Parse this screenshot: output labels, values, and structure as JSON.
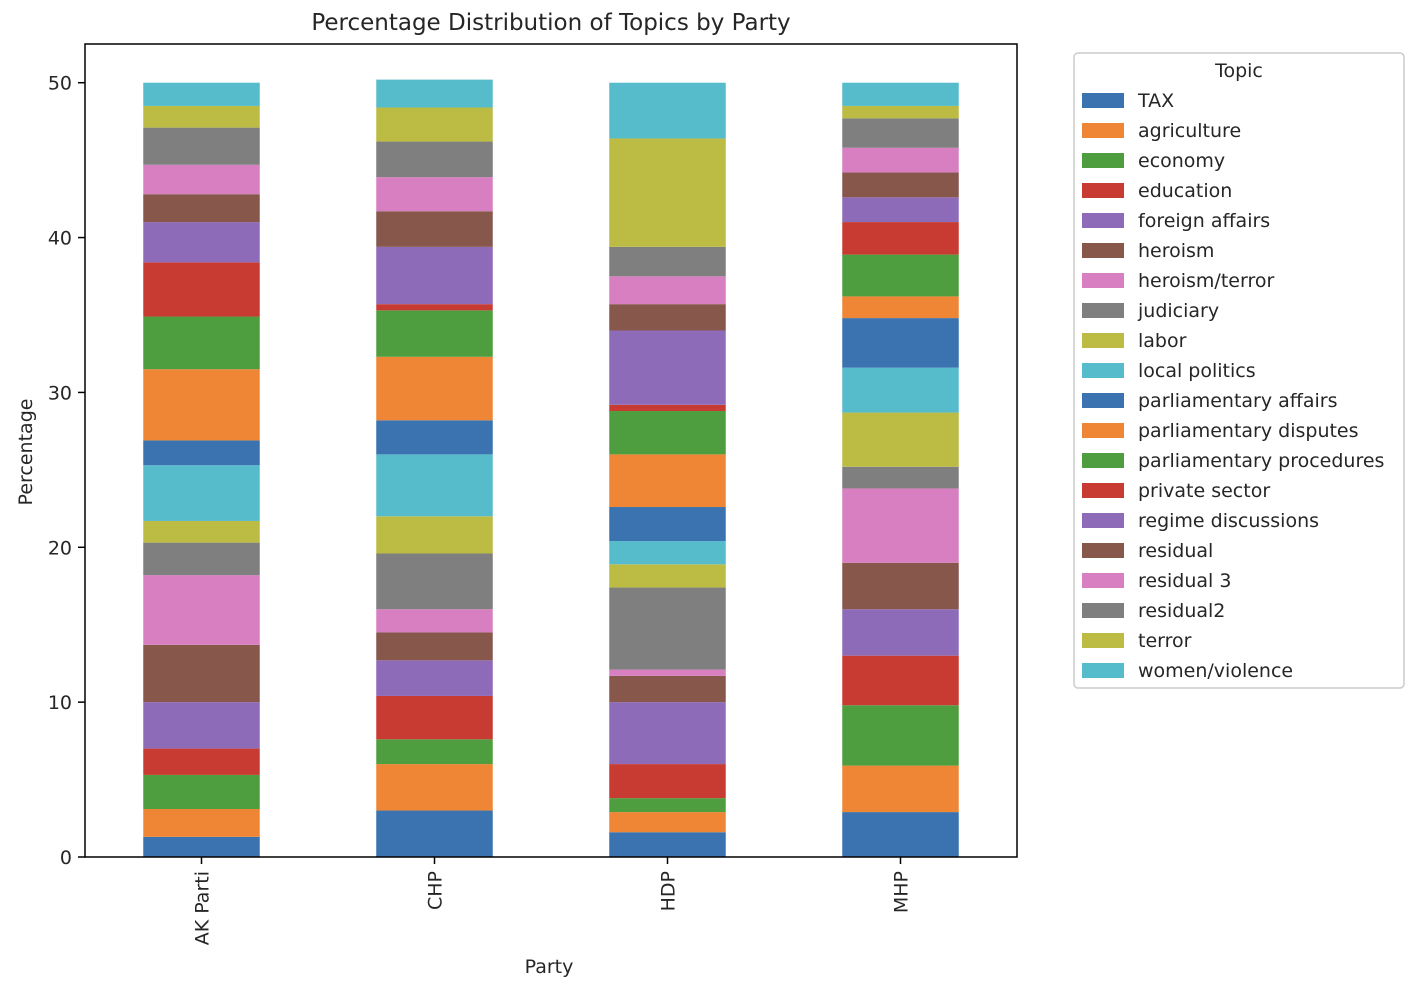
{
  "chart_data": {
    "type": "bar",
    "stacked": true,
    "title": "Percentage Distribution of Topics by Party",
    "xlabel": "Party",
    "ylabel": "Percentage",
    "ylim": [
      0,
      52.5
    ],
    "yticks": [
      0,
      10,
      20,
      30,
      40,
      50
    ],
    "categories": [
      "AK Parti",
      "CHP",
      "HDP",
      "MHP"
    ],
    "legend": {
      "title": "Topic",
      "placement": "outside right"
    },
    "series": [
      {
        "name": "TAX",
        "color": "#3a73b0",
        "values": [
          1.3,
          3.0,
          1.6,
          2.9
        ]
      },
      {
        "name": "agriculture",
        "color": "#ef8636",
        "values": [
          1.8,
          3.0,
          1.3,
          3.0
        ]
      },
      {
        "name": "economy",
        "color": "#4e9e3f",
        "values": [
          2.2,
          1.6,
          0.9,
          3.9
        ]
      },
      {
        "name": "education",
        "color": "#c73b33",
        "values": [
          1.7,
          2.8,
          2.2,
          3.2
        ]
      },
      {
        "name": "foreign affairs",
        "color": "#8e6bb8",
        "values": [
          3.0,
          2.3,
          4.0,
          3.0
        ]
      },
      {
        "name": "heroism",
        "color": "#87574b",
        "values": [
          3.7,
          1.8,
          1.7,
          3.0
        ]
      },
      {
        "name": "heroism/terror",
        "color": "#d77fc0",
        "values": [
          4.5,
          1.5,
          0.4,
          4.8
        ]
      },
      {
        "name": "judiciary",
        "color": "#7f7f7f",
        "values": [
          2.1,
          3.6,
          5.3,
          1.4
        ]
      },
      {
        "name": "labor",
        "color": "#bcbc45",
        "values": [
          1.4,
          2.4,
          1.5,
          3.5
        ]
      },
      {
        "name": "local politics",
        "color": "#56bccc",
        "values": [
          3.6,
          4.0,
          1.5,
          2.9
        ]
      },
      {
        "name": "parliamentary affairs",
        "color": "#3a73b0",
        "values": [
          1.6,
          2.2,
          2.2,
          3.2
        ]
      },
      {
        "name": "parliamentary disputes",
        "color": "#ef8636",
        "values": [
          4.6,
          4.1,
          3.4,
          1.4
        ]
      },
      {
        "name": "parliamentary procedures",
        "color": "#4e9e3f",
        "values": [
          3.4,
          3.0,
          2.8,
          2.7
        ]
      },
      {
        "name": "private sector",
        "color": "#c73b33",
        "values": [
          3.5,
          0.4,
          0.4,
          2.1
        ]
      },
      {
        "name": "regime discussions",
        "color": "#8e6bb8",
        "values": [
          2.6,
          3.7,
          4.8,
          1.6
        ]
      },
      {
        "name": "residual",
        "color": "#87574b",
        "values": [
          1.8,
          2.3,
          1.7,
          1.6
        ]
      },
      {
        "name": "residual 3",
        "color": "#d77fc0",
        "values": [
          1.9,
          2.2,
          1.8,
          1.6
        ]
      },
      {
        "name": "residual2",
        "color": "#7f7f7f",
        "values": [
          2.4,
          2.3,
          1.9,
          1.9
        ]
      },
      {
        "name": "terror",
        "color": "#bcbc45",
        "values": [
          1.4,
          2.2,
          7.0,
          0.8
        ]
      },
      {
        "name": "women/violence",
        "color": "#56bccc",
        "values": [
          1.5,
          1.8,
          3.6,
          1.5
        ]
      }
    ]
  }
}
